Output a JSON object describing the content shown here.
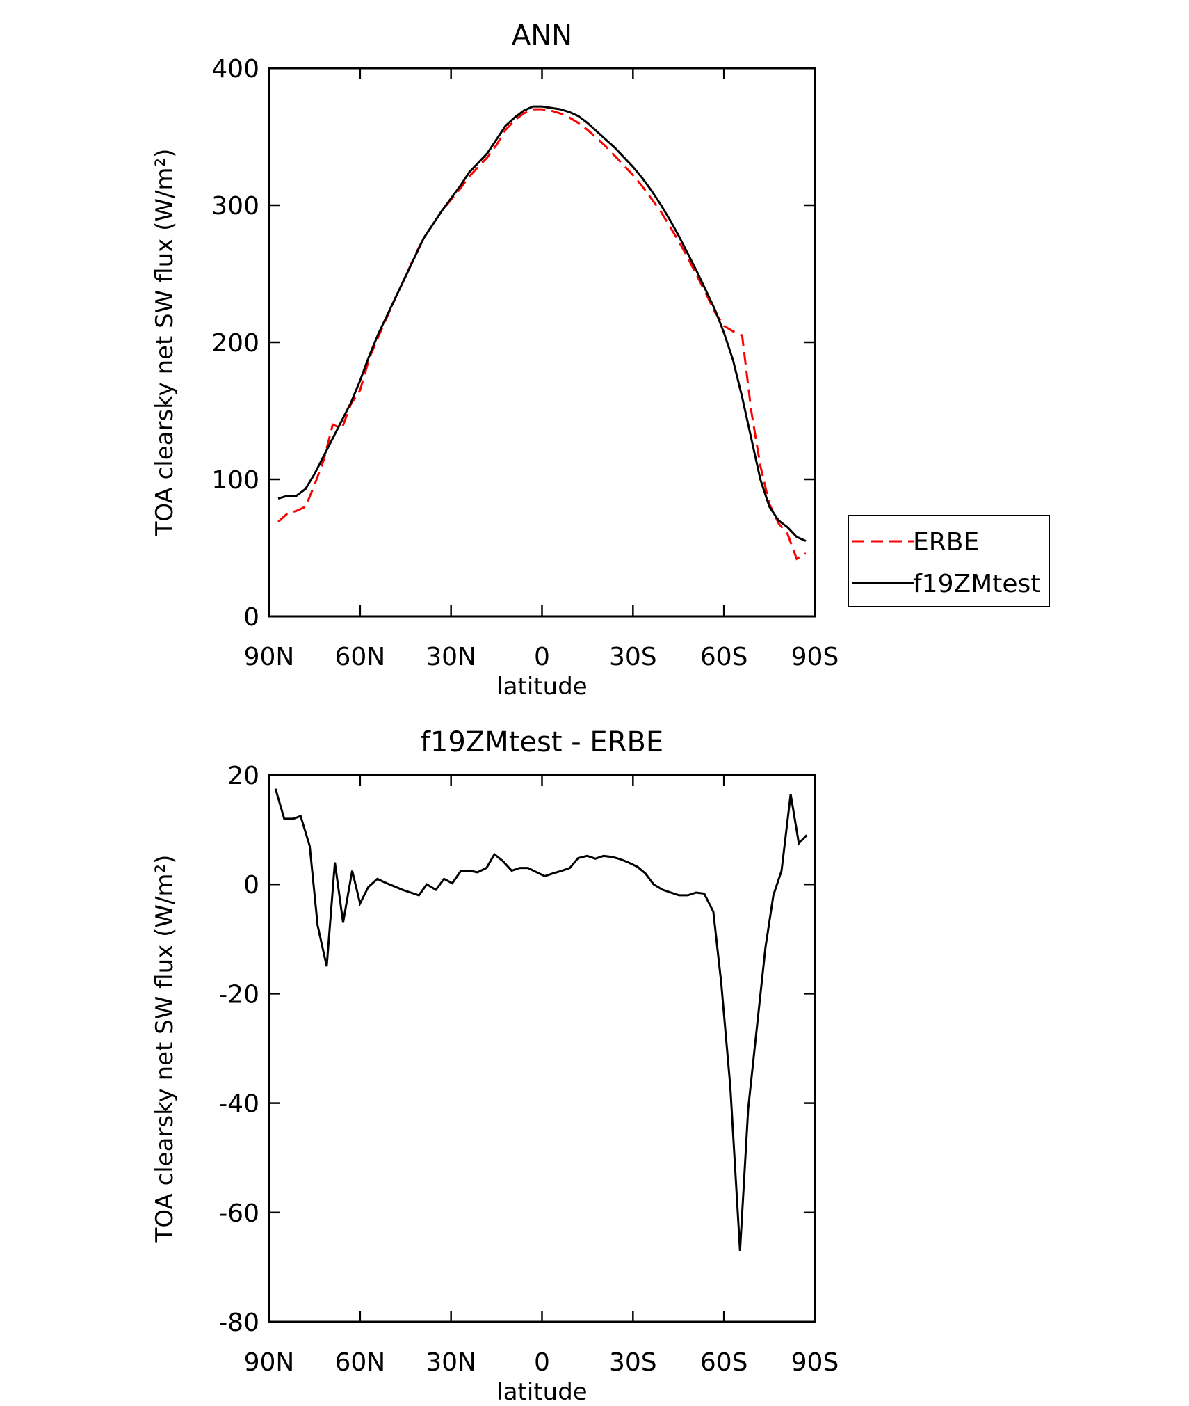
{
  "chart_data": [
    {
      "type": "line",
      "title": "ANN",
      "xlabel": "latitude",
      "ylabel": "TOA clearsky net SW flux (W/m²)",
      "xlim": [
        90,
        -90
      ],
      "xticks": [
        {
          "value": 90,
          "label": "90N"
        },
        {
          "value": 60,
          "label": "60N"
        },
        {
          "value": 30,
          "label": "30N"
        },
        0,
        {
          "value": -30,
          "label": "30S"
        },
        {
          "value": -60,
          "label": "60S"
        },
        {
          "value": -90,
          "label": "90S"
        }
      ],
      "ylim": [
        0,
        400
      ],
      "yticks": [
        0,
        100,
        200,
        300,
        400
      ],
      "legend": "right",
      "x": [
        87,
        84,
        81,
        78,
        75,
        72,
        69,
        66,
        63,
        60,
        57,
        54,
        51,
        48,
        45,
        42,
        39,
        36,
        33,
        30,
        27,
        24,
        21,
        18,
        15,
        12,
        9,
        6,
        3,
        0,
        -3,
        -6,
        -9,
        -12,
        -15,
        -18,
        -21,
        -24,
        -27,
        -30,
        -33,
        -36,
        -39,
        -42,
        -45,
        -48,
        -51,
        -54,
        -57,
        -60,
        -63,
        -66,
        -69,
        -72,
        -75,
        -78,
        -81,
        -84,
        -87
      ],
      "series": [
        {
          "name": "ERBE",
          "color": "#ff0000",
          "linestyle": "dashed",
          "values": [
            69,
            75,
            77,
            80,
            96,
            114,
            140,
            137,
            155,
            165,
            188,
            204,
            219,
            234,
            248,
            263,
            276,
            286,
            296,
            304,
            312,
            321,
            328,
            335,
            344,
            355,
            362,
            367,
            370,
            370,
            369,
            367,
            364,
            360,
            355,
            349,
            343,
            336,
            329,
            322,
            314,
            305,
            296,
            285,
            274,
            262,
            249,
            236,
            222,
            212,
            208,
            205,
            150,
            110,
            82,
            68,
            60,
            42,
            46
          ]
        },
        {
          "name": "f19ZMtest",
          "color": "#000000",
          "linestyle": "solid",
          "values": [
            86,
            88,
            88,
            93,
            104,
            117,
            130,
            143,
            156,
            172,
            190,
            206,
            220,
            234,
            248,
            262,
            276,
            286,
            296,
            305,
            314,
            324,
            331,
            338,
            348,
            358,
            364,
            369,
            372,
            372,
            371,
            370,
            368,
            365,
            360,
            354,
            348,
            342,
            335,
            328,
            320,
            311,
            301,
            290,
            278,
            265,
            252,
            238,
            224,
            207,
            187,
            160,
            130,
            100,
            80,
            70,
            65,
            58,
            55
          ]
        }
      ]
    },
    {
      "type": "line",
      "title": "f19ZMtest - ERBE",
      "xlabel": "latitude",
      "ylabel": "TOA clearsky net SW flux (W/m²)",
      "xlim": [
        90,
        -90
      ],
      "xticks": [
        {
          "value": 90,
          "label": "90N"
        },
        {
          "value": 60,
          "label": "60N"
        },
        {
          "value": 30,
          "label": "30N"
        },
        0,
        {
          "value": -30,
          "label": "30S"
        },
        {
          "value": -60,
          "label": "60S"
        },
        {
          "value": -90,
          "label": "90S"
        }
      ],
      "ylim": [
        -80,
        20
      ],
      "yticks": [
        -80,
        -60,
        -40,
        -20,
        0,
        20
      ],
      "x": [
        87.9,
        85.0,
        82.0,
        79.6,
        76.6,
        74.0,
        71.0,
        68.3,
        65.6,
        62.6,
        60.0,
        57.3,
        54.3,
        51.6,
        49.0,
        46.0,
        43.3,
        40.6,
        38.0,
        35.0,
        32.3,
        29.6,
        26.7,
        24.0,
        21.3,
        18.3,
        15.7,
        13.0,
        10.0,
        7.3,
        4.6,
        1.7,
        -0.9,
        -3.6,
        -6.6,
        -9.2,
        -11.9,
        -14.9,
        -17.6,
        -20.3,
        -23.2,
        -25.8,
        -28.5,
        -31.5,
        -34.1,
        -36.8,
        -39.8,
        -42.5,
        -45.2,
        -48.1,
        -50.8,
        -53.5,
        -56.5,
        -59.1,
        -62.1,
        -65.3,
        -68.0,
        -70.7,
        -73.7,
        -76.3,
        -79.0,
        -82.0,
        -84.7,
        -87.3
      ],
      "series": [
        {
          "color": "#000000",
          "linestyle": "solid",
          "values": [
            17.5,
            12,
            12,
            12.5,
            7,
            -7.5,
            -15,
            4,
            -7,
            2.5,
            -3.5,
            -0.5,
            1,
            0.3,
            -0.3,
            -1,
            -1.5,
            -2,
            0,
            -1,
            1,
            0.2,
            2.5,
            2.5,
            2.2,
            3,
            5.5,
            4.3,
            2.5,
            3,
            3,
            2.2,
            1.5,
            2,
            2.5,
            3,
            4.8,
            5.2,
            4.7,
            5.2,
            5,
            4.6,
            4,
            3.2,
            2,
            0,
            -1,
            -1.5,
            -2,
            -2,
            -1.5,
            -1.7,
            -5,
            -18,
            -37,
            -67,
            -41,
            -27,
            -11.5,
            -2,
            2.5,
            16.5,
            7.5,
            9
          ]
        }
      ]
    }
  ]
}
